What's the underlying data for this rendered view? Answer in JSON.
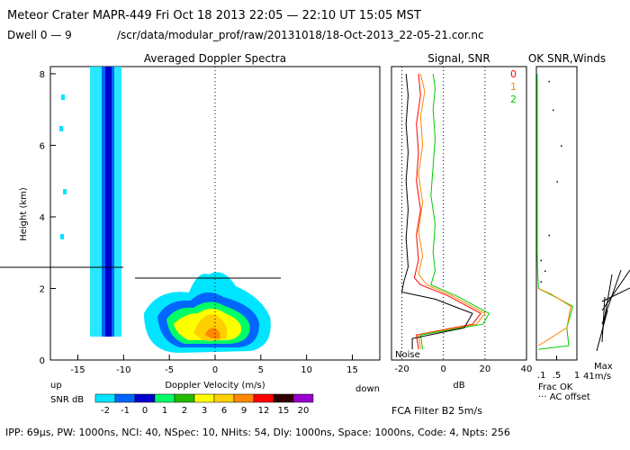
{
  "header": {
    "line1": "Meteor Crater   MAPR-449   Fri Oct 18 2013 22:05 — 22:10 UT 15:05 MST",
    "dwell": "Dwell   0 —  9",
    "path": "/scr/data/modular_prof/raw/20131018/18-Oct-2013_22-05-21.cor.nc"
  },
  "footer": {
    "params": "IPP:  69μs,  PW: 1000ns,  NCI:  40,  NSpec: 10, NHits: 54,  Dly: 1000ns,  Space: 1000ns,  Code: 4,  Npts: 256",
    "fca": "FCA Filter B2   5m/s"
  },
  "colors": {
    "red": "#ff0000",
    "orange": "#ff8800",
    "green": "#00cc00",
    "black": "#000000"
  },
  "chart_data": [
    {
      "type": "heatmap",
      "title": "Averaged Doppler Spectra",
      "xlabel": "Doppler Velocity  (m/s)",
      "ylabel": "Height (km)",
      "xlim": [
        -18,
        18
      ],
      "ylim": [
        0,
        8.2
      ],
      "x_ticks": [
        -15,
        -10,
        -5,
        0,
        5,
        10,
        15
      ],
      "x_tick_labels": [
        "-15",
        "-10",
        "-5",
        "0",
        "5",
        "10",
        "15"
      ],
      "y_ticks": [
        0,
        2,
        4,
        6,
        8
      ],
      "y_tick_labels": [
        "0",
        "2",
        "4",
        "6",
        "8"
      ],
      "x_left_label": "up",
      "x_right_label": "down",
      "colorbar": {
        "label": "SNR dB",
        "ticks": [
          "-2",
          "-1",
          "0",
          "1",
          "2",
          "3",
          "6",
          "9",
          "12",
          "15",
          "20"
        ],
        "colors": [
          "#00e5ff",
          "#0066ff",
          "#0000cc",
          "#00ff66",
          "#22bb00",
          "#ffff00",
          "#ffd000",
          "#ff8800",
          "#ff0000",
          "#330000",
          "#9900cc"
        ]
      }
    },
    {
      "type": "line",
      "title": "Signal, SNR",
      "xlabel": "dB",
      "xlim": [
        -25,
        40
      ],
      "ylim": [
        0,
        8.2
      ],
      "x_ticks": [
        -20,
        0,
        20,
        40
      ],
      "x_tick_labels": [
        "-20",
        "0",
        "20",
        "40"
      ],
      "annotation": "Noise",
      "series": [
        {
          "name": "0",
          "color": "#ff0000",
          "points": [
            [
              -12,
              0.3
            ],
            [
              -13,
              0.7
            ],
            [
              14,
              1.0
            ],
            [
              18,
              1.3
            ],
            [
              2,
              1.8
            ],
            [
              -11,
              2.1
            ],
            [
              -14,
              2.3
            ],
            [
              -12,
              2.8
            ],
            [
              -13,
              3.5
            ],
            [
              -11,
              4.2
            ],
            [
              -13,
              5.0
            ],
            [
              -12,
              5.8
            ],
            [
              -13,
              6.6
            ],
            [
              -11,
              7.4
            ],
            [
              -12,
              8.0
            ]
          ]
        },
        {
          "name": "1",
          "color": "#ff8800",
          "points": [
            [
              -11,
              0.3
            ],
            [
              -12,
              0.7
            ],
            [
              16,
              1.0
            ],
            [
              20,
              1.3
            ],
            [
              4,
              1.8
            ],
            [
              -8,
              2.1
            ],
            [
              -12,
              2.4
            ],
            [
              -10,
              2.9
            ],
            [
              -12,
              3.6
            ],
            [
              -10,
              4.4
            ],
            [
              -12,
              5.2
            ],
            [
              -10,
              6.0
            ],
            [
              -11,
              6.8
            ],
            [
              -9,
              7.5
            ],
            [
              -11,
              8.0
            ]
          ]
        },
        {
          "name": "2",
          "color": "#00cc00",
          "points": [
            [
              -10,
              0.3
            ],
            [
              -11,
              0.7
            ],
            [
              19,
              1.0
            ],
            [
              22,
              1.3
            ],
            [
              6,
              1.8
            ],
            [
              -6,
              2.1
            ],
            [
              -4,
              2.5
            ],
            [
              -5,
              3.0
            ],
            [
              -4,
              3.8
            ],
            [
              -6,
              4.6
            ],
            [
              -5,
              5.4
            ],
            [
              -4,
              6.2
            ],
            [
              -5,
              7.0
            ],
            [
              -4,
              7.6
            ],
            [
              -5,
              8.0
            ]
          ]
        },
        {
          "name": "Signal",
          "color": "#000000",
          "points": [
            [
              -15,
              0.3
            ],
            [
              -15,
              0.6
            ],
            [
              10,
              0.9
            ],
            [
              14,
              1.3
            ],
            [
              -4,
              1.7
            ],
            [
              -20,
              1.9
            ],
            [
              -19,
              2.2
            ],
            [
              -17,
              2.6
            ],
            [
              -18,
              3.4
            ],
            [
              -17,
              4.2
            ],
            [
              -18,
              5.0
            ],
            [
              -17,
              5.8
            ],
            [
              -18,
              6.6
            ],
            [
              -17,
              7.4
            ],
            [
              -18,
              8.0
            ]
          ]
        }
      ]
    },
    {
      "type": "line",
      "title": "OK SNR,Winds",
      "xlabel": "Frac OK",
      "xlim": [
        0,
        1
      ],
      "ylim": [
        0,
        8.2
      ],
      "x_ticks": [
        0.5,
        1
      ],
      "x_tick_labels": [
        ".5",
        "1"
      ],
      "x_extra_label": ".1",
      "legend": "··· AC offset",
      "wind_scale": "Max",
      "wind_max": "41m/s",
      "series": [
        {
          "name": "Frac OK",
          "color": "#00cc00",
          "points": [
            [
              0.05,
              0.3
            ],
            [
              0.8,
              0.4
            ],
            [
              0.75,
              0.9
            ],
            [
              0.9,
              1.5
            ],
            [
              0.4,
              1.8
            ],
            [
              0.05,
              2.0
            ],
            [
              0.03,
              2.5
            ],
            [
              0.02,
              3.0
            ],
            [
              0.02,
              8.0
            ]
          ]
        },
        {
          "name": "SNR OK",
          "color": "#ff8800",
          "points": [
            [
              0.05,
              0.4
            ],
            [
              0.75,
              0.9
            ],
            [
              0.85,
              1.5
            ],
            [
              0.35,
              1.85
            ],
            [
              0.04,
              2.0
            ]
          ]
        },
        {
          "name": "AC offset",
          "color": "#000000",
          "points": [
            [
              0.1,
              2.2
            ],
            [
              0.2,
              2.5
            ],
            [
              0.1,
              2.8
            ],
            [
              0.3,
              3.5
            ],
            [
              0.5,
              5.0
            ],
            [
              0.6,
              6.0
            ],
            [
              0.4,
              7.0
            ],
            [
              0.3,
              7.8
            ]
          ]
        }
      ]
    }
  ]
}
